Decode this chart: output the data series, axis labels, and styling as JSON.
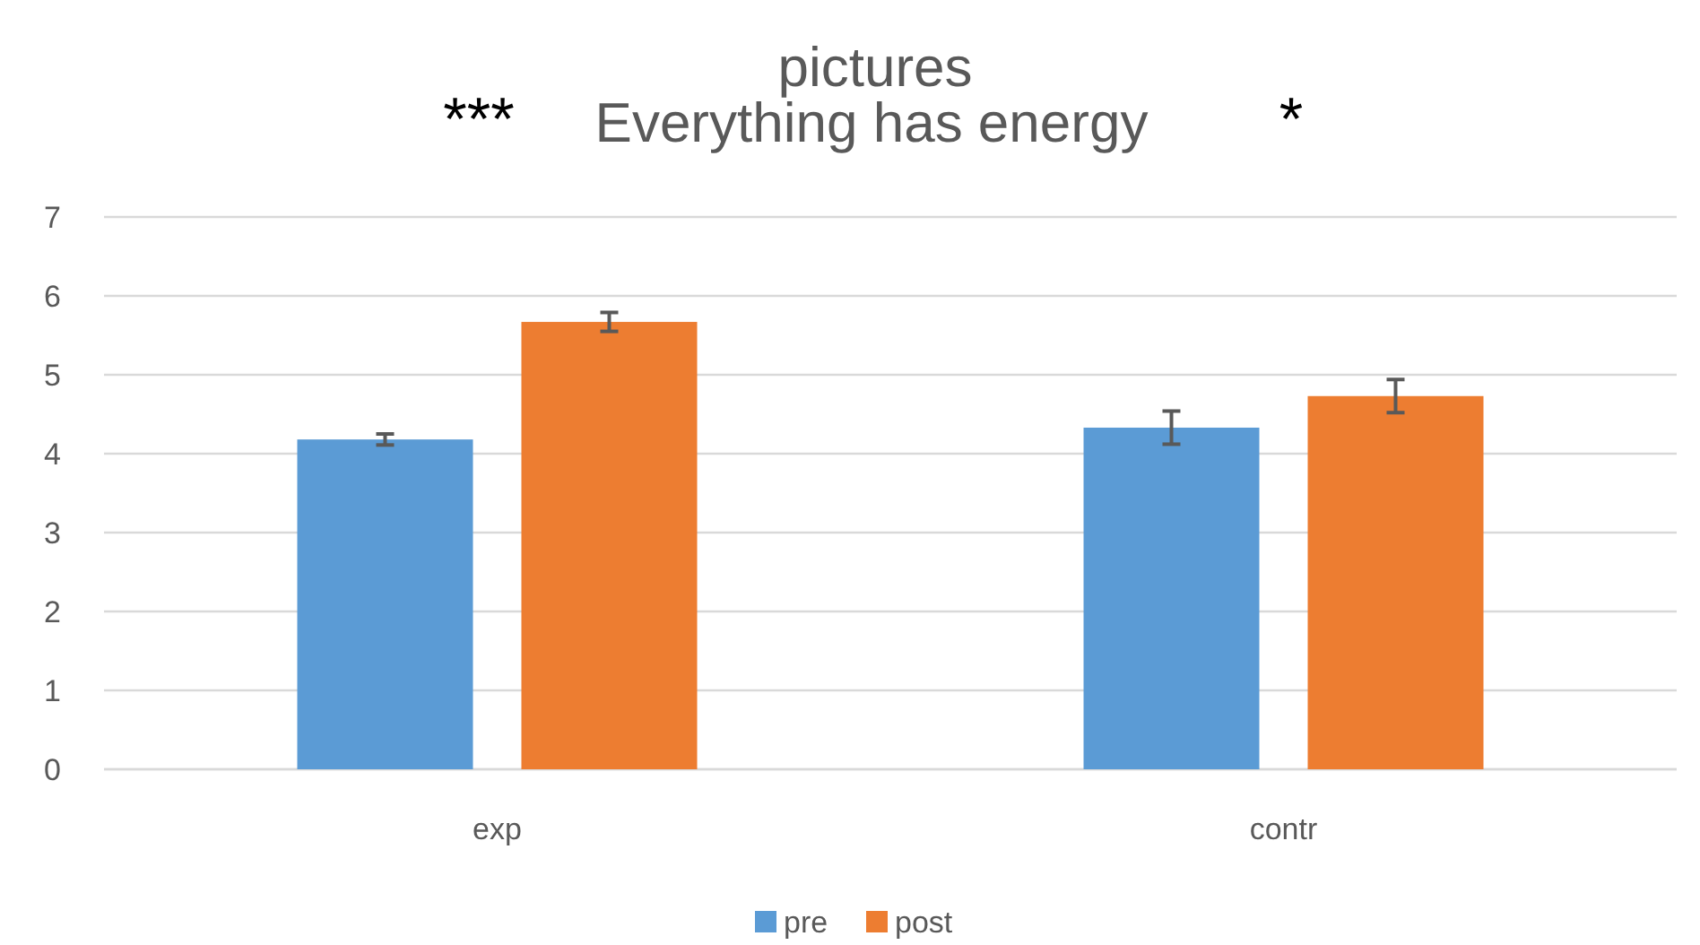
{
  "chart_data": {
    "type": "bar",
    "title": "pictures",
    "subtitle": "Everything has energy",
    "annotations": [
      "***",
      "*"
    ],
    "categories": [
      "exp",
      "contr"
    ],
    "series": [
      {
        "name": "pre",
        "color": "#5b9bd5",
        "values": [
          4.18,
          4.33
        ],
        "errors": [
          0.07,
          0.21
        ]
      },
      {
        "name": "post",
        "color": "#ed7d31",
        "values": [
          5.67,
          4.73
        ],
        "errors": [
          0.12,
          0.21
        ]
      }
    ],
    "ylim": [
      0,
      7
    ],
    "yticks": [
      0,
      1,
      2,
      3,
      4,
      5,
      6,
      7
    ],
    "grid": "y",
    "legend": "bottom"
  }
}
